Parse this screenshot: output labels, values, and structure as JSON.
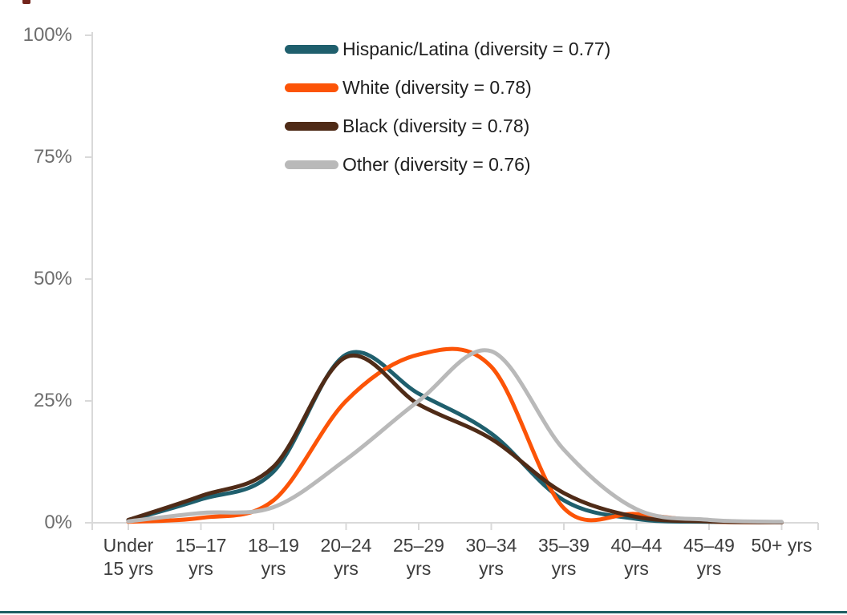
{
  "chart_data": {
    "type": "line",
    "smoothed": true,
    "title": "",
    "xlabel": "",
    "ylabel": "",
    "grid": false,
    "legend_position": "top-center",
    "categories": [
      "Under 15 yrs",
      "15–17 yrs",
      "18–19 yrs",
      "20–24 yrs",
      "25–29 yrs",
      "30–34 yrs",
      "35–39 yrs",
      "40–44 yrs",
      "45–49 yrs",
      "50+ yrs"
    ],
    "x_tick_lines": [
      [
        "Under",
        "15 yrs"
      ],
      [
        "15–17",
        "yrs"
      ],
      [
        "18–19",
        "yrs"
      ],
      [
        "20–24",
        "yrs"
      ],
      [
        "25–29",
        "yrs"
      ],
      [
        "30–34",
        "yrs"
      ],
      [
        "35–39",
        "yrs"
      ],
      [
        "40–44",
        "yrs"
      ],
      [
        "45–49",
        "yrs"
      ],
      [
        "50+ yrs"
      ]
    ],
    "y_axis": {
      "range": [
        0,
        100
      ],
      "ticks": [
        0,
        25,
        50,
        75,
        100
      ],
      "labels": [
        "0%",
        "25%",
        "50%",
        "75%",
        "100%"
      ]
    },
    "series": [
      {
        "name": "Hispanic/Latina",
        "diversity": 0.77,
        "legend_label": "Hispanic/Latina (diversity = 0.77)",
        "color": "#1f5f6d",
        "values": [
          0.5,
          4.8,
          10.5,
          34.5,
          26.5,
          18.3,
          4.6,
          0.8,
          0.2,
          0.1
        ]
      },
      {
        "name": "White",
        "diversity": 0.78,
        "legend_label": "White (diversity = 0.78)",
        "color": "#fc5407",
        "values": [
          0.2,
          1.0,
          4.6,
          25.0,
          34.5,
          32.0,
          3.0,
          1.8,
          0.3,
          0.1
        ]
      },
      {
        "name": "Black",
        "diversity": 0.78,
        "legend_label": "Black (diversity = 0.78)",
        "color": "#4f2b17",
        "values": [
          0.6,
          5.5,
          11.5,
          34.0,
          24.3,
          17.2,
          6.1,
          1.2,
          0.3,
          0.1
        ]
      },
      {
        "name": "Other",
        "diversity": 0.76,
        "legend_label": "Other (diversity = 0.76)",
        "color": "#b9b9b9",
        "values": [
          0.3,
          2.0,
          3.2,
          13.0,
          25.0,
          35.2,
          15.0,
          2.8,
          0.6,
          0.2
        ]
      }
    ],
    "colors": {
      "axis_line": "#d9d9d9",
      "y_tick_label": "#6e6e6e",
      "x_tick_label": "#3d3d3d",
      "legend_text": "#1f1f1f"
    }
  },
  "decorations": {
    "top_left_mark_color": "#73241c",
    "footer_rule_color": "#1e5e62"
  }
}
